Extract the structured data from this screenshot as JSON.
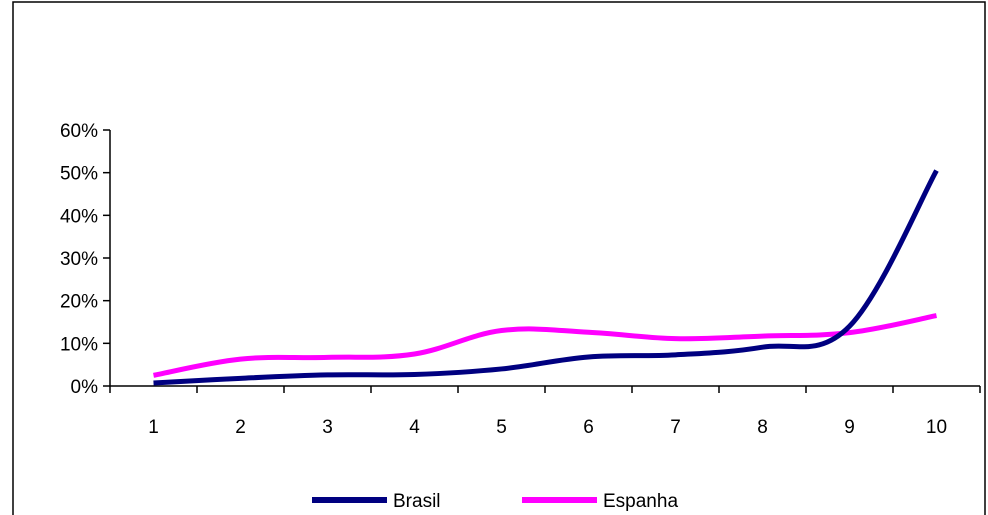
{
  "chart_data": {
    "type": "line",
    "title": "",
    "xlabel": "",
    "ylabel": "",
    "categories": [
      "1",
      "2",
      "3",
      "4",
      "5",
      "6",
      "7",
      "8",
      "9",
      "10"
    ],
    "ylim": [
      0,
      0.6
    ],
    "yticks": [
      {
        "value": 0,
        "label": "0%"
      },
      {
        "value": 0.1,
        "label": "10%"
      },
      {
        "value": 0.2,
        "label": "20%"
      },
      {
        "value": 0.3,
        "label": "30%"
      },
      {
        "value": 0.4,
        "label": "40%"
      },
      {
        "value": 0.5,
        "label": "50%"
      },
      {
        "value": 0.6,
        "label": "60%"
      }
    ],
    "grid": false,
    "legend_position": "bottom",
    "series": [
      {
        "name": "Brasil",
        "color": "#000080",
        "values": [
          0.007,
          0.018,
          0.026,
          0.027,
          0.04,
          0.068,
          0.073,
          0.091,
          0.14,
          0.505
        ]
      },
      {
        "name": "Espanha",
        "color": "#FF00FF",
        "values": [
          0.025,
          0.063,
          0.067,
          0.075,
          0.13,
          0.126,
          0.111,
          0.117,
          0.125,
          0.165
        ]
      }
    ]
  }
}
